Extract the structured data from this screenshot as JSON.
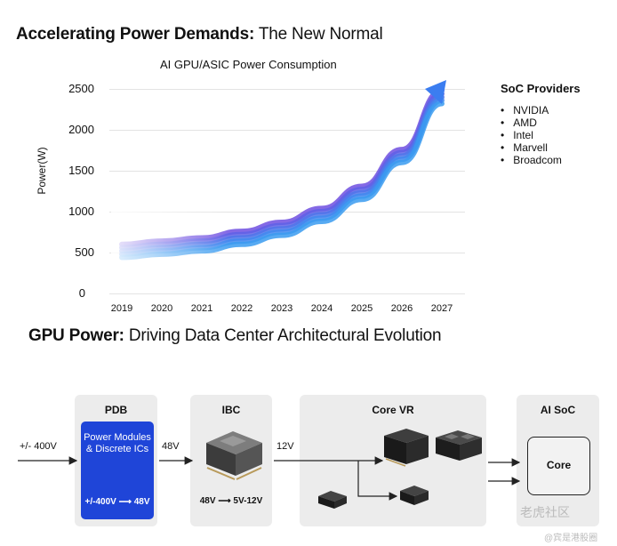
{
  "header": {
    "title_bold": "Accelerating Power Demands:",
    "title_rest": " The New Normal"
  },
  "chart_data": {
    "type": "line",
    "title": "AI GPU/ASIC Power Consumption",
    "ylabel": "Power(W)",
    "xlabel": "",
    "x": [
      "2019",
      "2020",
      "2021",
      "2022",
      "2023",
      "2024",
      "2025",
      "2026",
      "2027"
    ],
    "yticks": [
      "2500",
      "2000",
      "1500",
      "1000",
      "500",
      "0"
    ],
    "ylim": [
      0,
      2500
    ],
    "grid": true,
    "legend": "none",
    "series": [
      {
        "values": [
          600,
          640,
          680,
          760,
          870,
          1040,
          1310,
          1760,
          2480
        ]
      },
      {
        "values": [
          560,
          600,
          640,
          720,
          830,
          1000,
          1270,
          1720,
          2440
        ]
      },
      {
        "values": [
          520,
          560,
          600,
          680,
          790,
          960,
          1230,
          1680,
          2400
        ]
      },
      {
        "values": [
          480,
          520,
          560,
          640,
          750,
          920,
          1190,
          1640,
          2360
        ]
      },
      {
        "values": [
          440,
          480,
          520,
          600,
          710,
          880,
          1150,
          1600,
          2320
        ]
      }
    ],
    "colors": [
      "#6e4fe0",
      "#5e62e6",
      "#4f75ea",
      "#4188ee",
      "#3a9bf0"
    ]
  },
  "soc": {
    "title": "SoC Providers",
    "items": [
      "NVIDIA",
      "AMD",
      "Intel",
      "Marvell",
      "Broadcom"
    ]
  },
  "section2": {
    "title_bold": "GPU Power:",
    "title_rest": " Driving Data Center Architectural Evolution"
  },
  "diagram": {
    "input_label": "+/- 400V",
    "pdb": {
      "title": "PDB",
      "box_text": "Power Modules & Discrete ICs",
      "conversion": "+/-400V ⟶ 48V"
    },
    "wire_48v": "48V",
    "ibc": {
      "title": "IBC",
      "conversion": "48V ⟶ 5V-12V"
    },
    "wire_12v": "12V",
    "core_vr": {
      "title": "Core VR"
    },
    "ai_soc": {
      "title": "AI SoC",
      "core_label": "Core"
    }
  },
  "watermark": {
    "main": "老虎社区",
    "sub": "@宾是港股圈"
  },
  "colors": {
    "accent_blue": "#1f45d8",
    "panel_gray": "#ececec"
  }
}
